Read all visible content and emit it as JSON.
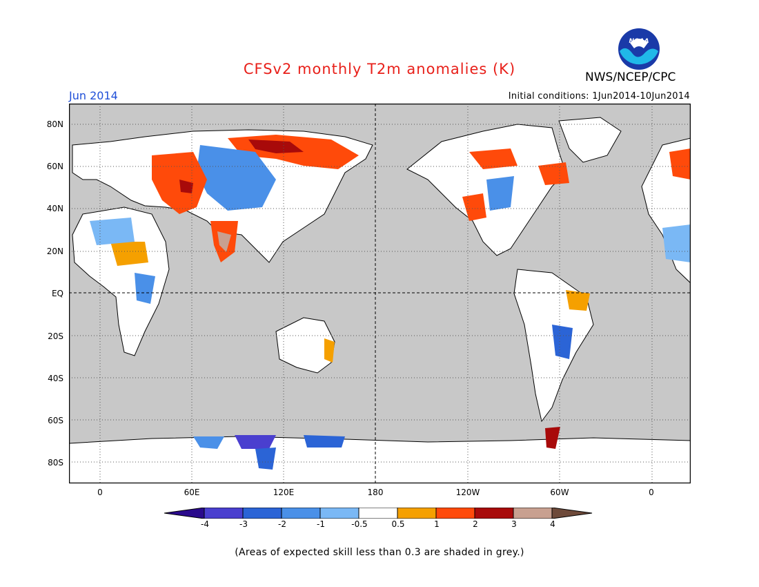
{
  "title": "CFSv2 monthly T2m anomalies (K)",
  "agency": "NWS/NCEP/CPC",
  "logo_text": "NOAA",
  "month": "Jun 2014",
  "initial_conditions": "Initial conditions: 1Jun2014-10Jun2014",
  "footnote": "(Areas of expected skill less than 0.3 are shaded in grey.)",
  "lat_labels": [
    "80N",
    "60N",
    "40N",
    "20N",
    "EQ",
    "20S",
    "40S",
    "60S",
    "80S"
  ],
  "lon_labels": [
    "0",
    "60E",
    "120E",
    "180",
    "120W",
    "60W",
    "0"
  ],
  "colorbar": {
    "labels": [
      "-4",
      "-3",
      "-2",
      "-1",
      "-0.5",
      "0.5",
      "1",
      "2",
      "3",
      "4"
    ],
    "colors": [
      "#2a0a8c",
      "#4a3fcf",
      "#2b64d6",
      "#4a90e8",
      "#7ab8f5",
      "#ffffff",
      "#f5a000",
      "#ff4a0a",
      "#a80a0a",
      "#c8a090",
      "#6e4a3a"
    ]
  },
  "colors": {
    "title": "#e8201a",
    "month": "#1f4fd8",
    "no_skill_grey": "#c8c8c8",
    "land_low_anomaly": "#ffffff"
  }
}
